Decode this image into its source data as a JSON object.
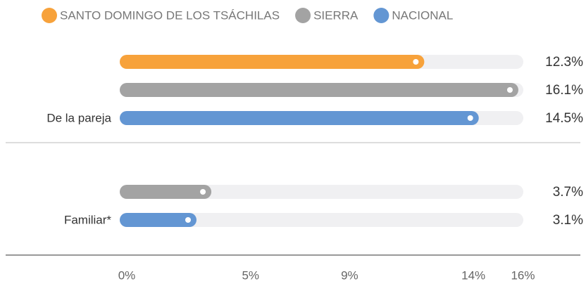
{
  "chart_data": {
    "type": "bar",
    "orientation": "horizontal",
    "categories": [
      "De la pareja",
      "Familiar*"
    ],
    "series": [
      {
        "name": "SANTO DOMINGO DE LOS TSÁCHILAS",
        "color": "#f7a23b",
        "values": [
          12.3,
          null
        ],
        "value_labels": [
          "12.3%",
          null
        ]
      },
      {
        "name": "SIERRA",
        "color": "#a3a3a3",
        "values": [
          16.1,
          3.7
        ],
        "value_labels": [
          "16.1%",
          "3.7%"
        ]
      },
      {
        "name": "NACIONAL",
        "color": "#6396d3",
        "values": [
          14.5,
          3.1
        ],
        "value_labels": [
          "14.5%",
          "3.1%"
        ]
      }
    ],
    "xlim": [
      0,
      16.3
    ],
    "xticks": [
      {
        "value": 0,
        "label": "0%"
      },
      {
        "value": 5,
        "label": "5%"
      },
      {
        "value": 9,
        "label": "9%"
      },
      {
        "value": 14,
        "label": "14%"
      },
      {
        "value": 16,
        "label": "16%"
      }
    ],
    "legend": "top"
  }
}
